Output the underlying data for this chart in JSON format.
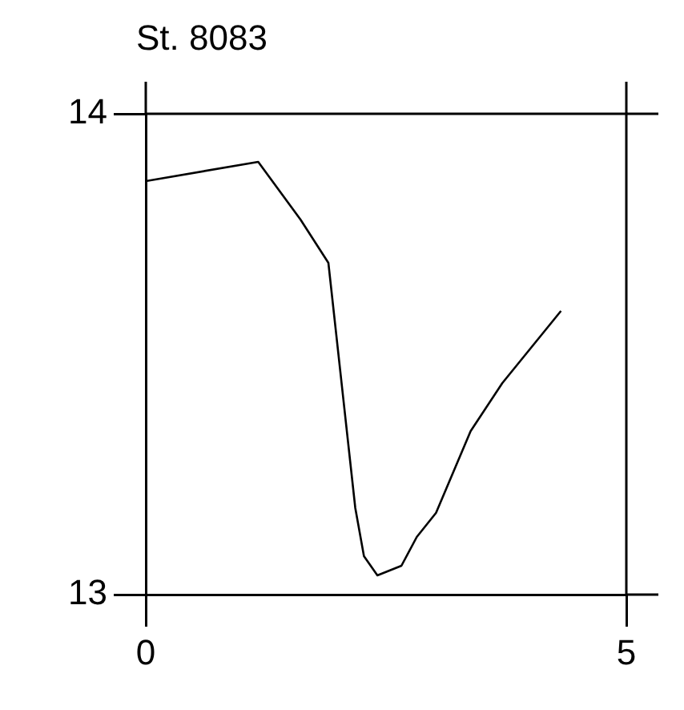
{
  "chart_data": {
    "type": "line",
    "title": "St. 8083",
    "x": [
      0,
      1.17,
      1.61,
      1.9,
      2.18,
      2.27,
      2.41,
      2.66,
      2.82,
      3.02,
      3.38,
      3.71,
      4.32
    ],
    "values": [
      13.86,
      13.9,
      13.78,
      13.69,
      13.18,
      13.08,
      13.04,
      13.06,
      13.12,
      13.17,
      13.34,
      13.44,
      13.59
    ],
    "color": "#000000",
    "xlim": [
      0,
      5
    ],
    "xticks": [
      0,
      5
    ],
    "ylim": [
      13,
      14
    ],
    "yticks": [
      13,
      14
    ],
    "grid": false,
    "marker": "none",
    "line_style": "solid"
  }
}
